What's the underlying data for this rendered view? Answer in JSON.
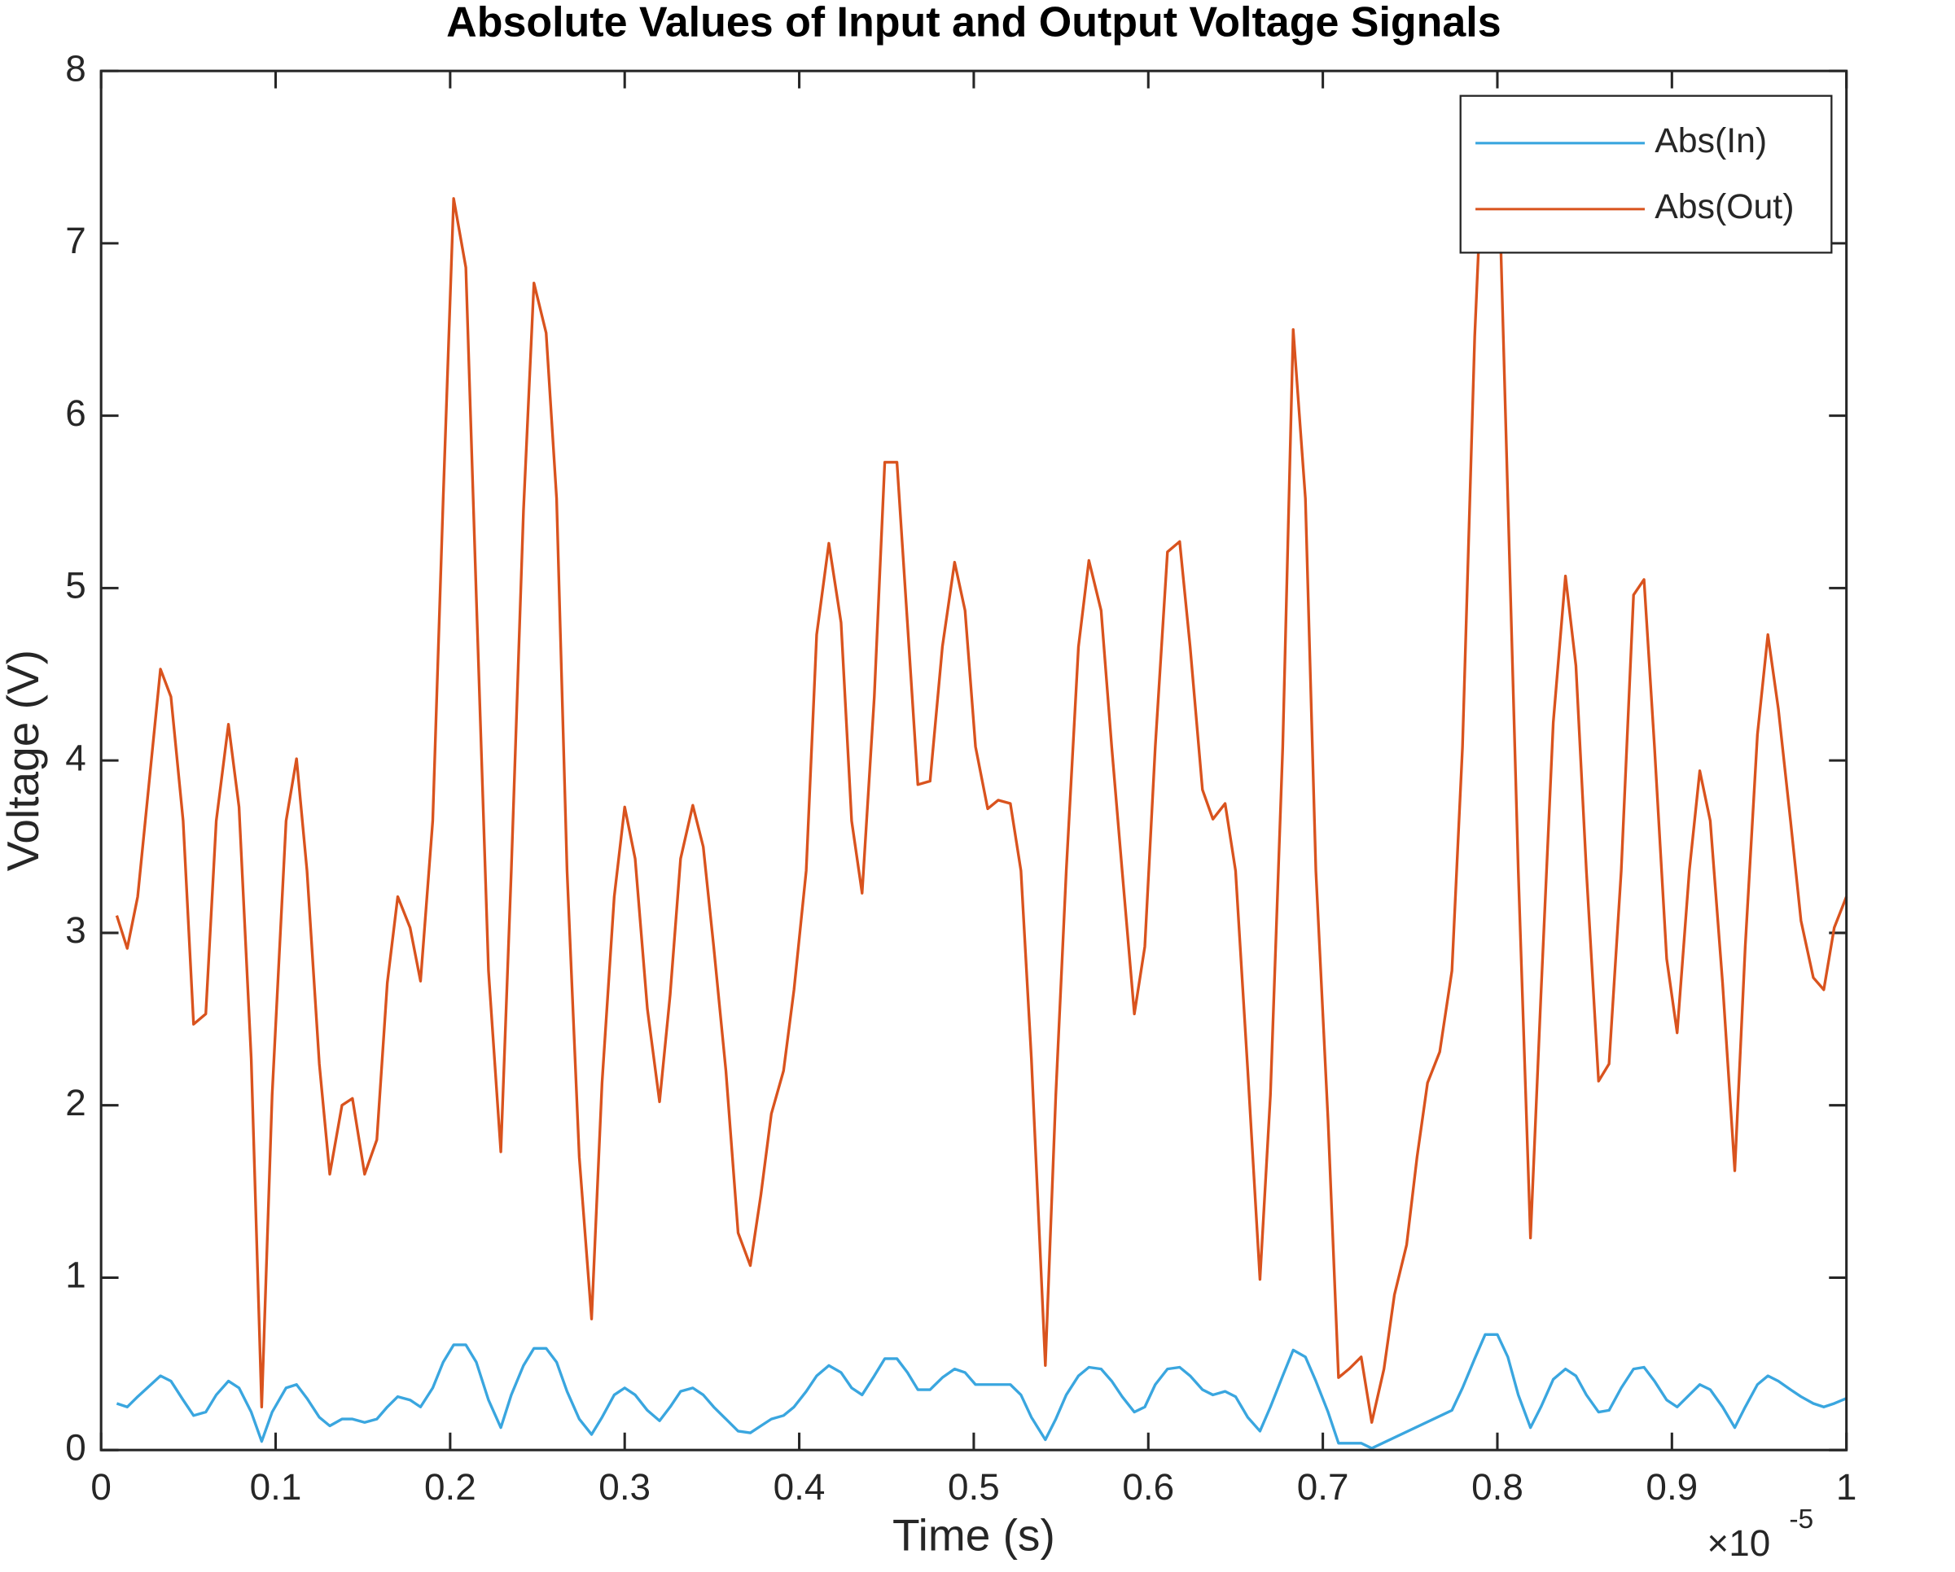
{
  "chart_data": {
    "type": "line",
    "title": "Absolute Values of Input and Output Voltage Signals",
    "x_label": "Time (s)",
    "y_label": "Voltage (V)",
    "x_scale_label": "×10",
    "x_scale_exponent": "-5",
    "xlim": [
      0,
      1
    ],
    "ylim": [
      0,
      8
    ],
    "xticks": [
      0,
      0.1,
      0.2,
      0.3,
      0.4,
      0.5,
      0.6,
      0.7,
      0.8,
      0.9,
      1
    ],
    "yticks": [
      0,
      1,
      2,
      3,
      4,
      5,
      6,
      7,
      8
    ],
    "grid": false,
    "legend": "top-right",
    "series": [
      {
        "name": "Abs(In)",
        "color": "#3aa6df",
        "x": [
          0.009,
          0.015,
          0.021,
          0.034,
          0.04,
          0.047,
          0.053,
          0.06,
          0.066,
          0.073,
          0.079,
          0.086,
          0.092,
          0.098,
          0.106,
          0.112,
          0.118,
          0.125,
          0.131,
          0.138,
          0.144,
          0.151,
          0.158,
          0.164,
          0.17,
          0.177,
          0.183,
          0.19,
          0.196,
          0.202,
          0.209,
          0.215,
          0.222,
          0.229,
          0.235,
          0.242,
          0.248,
          0.255,
          0.261,
          0.267,
          0.274,
          0.281,
          0.287,
          0.294,
          0.3,
          0.306,
          0.313,
          0.32,
          0.326,
          0.332,
          0.339,
          0.345,
          0.351,
          0.358,
          0.365,
          0.372,
          0.378,
          0.384,
          0.391,
          0.397,
          0.404,
          0.41,
          0.417,
          0.424,
          0.43,
          0.436,
          0.443,
          0.449,
          0.456,
          0.462,
          0.468,
          0.475,
          0.482,
          0.489,
          0.495,
          0.501,
          0.508,
          0.514,
          0.521,
          0.527,
          0.533,
          0.541,
          0.547,
          0.553,
          0.56,
          0.566,
          0.573,
          0.579,
          0.585,
          0.592,
          0.598,
          0.604,
          0.611,
          0.618,
          0.624,
          0.631,
          0.637,
          0.644,
          0.65,
          0.657,
          0.664,
          0.67,
          0.677,
          0.683,
          0.69,
          0.696,
          0.703,
          0.709,
          0.715,
          0.722,
          0.728,
          0.774,
          0.78,
          0.787,
          0.793,
          0.8,
          0.806,
          0.812,
          0.819,
          0.825,
          0.832,
          0.839,
          0.845,
          0.851,
          0.858,
          0.864,
          0.871,
          0.878,
          0.884,
          0.89,
          0.897,
          0.903,
          0.91,
          0.916,
          0.922,
          0.929,
          0.936,
          0.942,
          0.949,
          0.955,
          0.961,
          0.968,
          0.974,
          0.981,
          0.987,
          0.993,
          1.0
        ],
        "values": [
          0.27,
          0.25,
          0.31,
          0.43,
          0.4,
          0.29,
          0.2,
          0.22,
          0.32,
          0.4,
          0.36,
          0.22,
          0.05,
          0.22,
          0.36,
          0.38,
          0.3,
          0.19,
          0.14,
          0.18,
          0.18,
          0.16,
          0.18,
          0.25,
          0.31,
          0.29,
          0.25,
          0.36,
          0.51,
          0.61,
          0.61,
          0.51,
          0.29,
          0.13,
          0.32,
          0.49,
          0.59,
          0.59,
          0.51,
          0.34,
          0.18,
          0.09,
          0.19,
          0.32,
          0.36,
          0.32,
          0.23,
          0.17,
          0.25,
          0.34,
          0.36,
          0.32,
          0.25,
          0.18,
          0.11,
          0.1,
          0.14,
          0.18,
          0.2,
          0.25,
          0.34,
          0.43,
          0.49,
          0.45,
          0.36,
          0.32,
          0.43,
          0.53,
          0.53,
          0.45,
          0.35,
          0.35,
          0.42,
          0.47,
          0.45,
          0.38,
          0.38,
          0.38,
          0.38,
          0.32,
          0.19,
          0.06,
          0.18,
          0.32,
          0.43,
          0.48,
          0.47,
          0.4,
          0.31,
          0.22,
          0.25,
          0.38,
          0.47,
          0.48,
          0.43,
          0.35,
          0.32,
          0.34,
          0.31,
          0.19,
          0.11,
          0.25,
          0.43,
          0.58,
          0.54,
          0.4,
          0.22,
          0.04,
          0.04,
          0.04,
          0.01,
          0.23,
          0.36,
          0.53,
          0.67,
          0.67,
          0.54,
          0.32,
          0.13,
          0.25,
          0.41,
          0.47,
          0.43,
          0.32,
          0.22,
          0.23,
          0.36,
          0.47,
          0.48,
          0.4,
          0.29,
          0.25,
          0.32,
          0.38,
          0.35,
          0.25,
          0.13,
          0.25,
          0.38,
          0.43,
          0.4,
          0.35,
          0.31,
          0.27,
          0.25,
          0.27,
          0.3
        ]
      },
      {
        "name": "Abs(Out)",
        "color": "#d9531e",
        "x": [
          0.009,
          0.015,
          0.021,
          0.034,
          0.04,
          0.047,
          0.053,
          0.06,
          0.066,
          0.073,
          0.079,
          0.086,
          0.092,
          0.098,
          0.106,
          0.112,
          0.118,
          0.125,
          0.131,
          0.138,
          0.144,
          0.151,
          0.158,
          0.164,
          0.17,
          0.177,
          0.183,
          0.19,
          0.196,
          0.202,
          0.209,
          0.215,
          0.222,
          0.229,
          0.235,
          0.242,
          0.248,
          0.255,
          0.261,
          0.267,
          0.274,
          0.281,
          0.287,
          0.294,
          0.3,
          0.306,
          0.313,
          0.32,
          0.326,
          0.332,
          0.339,
          0.345,
          0.351,
          0.358,
          0.365,
          0.372,
          0.378,
          0.384,
          0.391,
          0.397,
          0.404,
          0.41,
          0.417,
          0.424,
          0.43,
          0.436,
          0.443,
          0.449,
          0.456,
          0.462,
          0.468,
          0.475,
          0.482,
          0.489,
          0.495,
          0.501,
          0.508,
          0.514,
          0.521,
          0.527,
          0.533,
          0.541,
          0.547,
          0.553,
          0.56,
          0.566,
          0.573,
          0.579,
          0.585,
          0.592,
          0.598,
          0.604,
          0.611,
          0.618,
          0.624,
          0.631,
          0.637,
          0.644,
          0.65,
          0.657,
          0.664,
          0.67,
          0.677,
          0.683,
          0.69,
          0.696,
          0.703,
          0.709,
          0.715,
          0.722,
          0.728,
          0.735,
          0.741,
          0.748,
          0.754,
          0.76,
          0.767,
          0.774,
          0.78,
          0.787,
          0.793,
          0.8,
          0.806,
          0.812,
          0.819,
          0.825,
          0.832,
          0.839,
          0.845,
          0.851,
          0.858,
          0.864,
          0.871,
          0.878,
          0.884,
          0.89,
          0.897,
          0.903,
          0.91,
          0.916,
          0.922,
          0.929,
          0.936,
          0.942,
          0.949,
          0.955,
          0.961,
          0.968,
          0.974,
          0.981,
          0.987,
          0.993,
          1.0
        ],
        "values": [
          3.1,
          2.91,
          3.21,
          4.53,
          4.37,
          3.65,
          2.47,
          2.53,
          3.65,
          4.21,
          3.73,
          2.27,
          0.25,
          2.06,
          3.65,
          4.01,
          3.36,
          2.24,
          1.6,
          2.0,
          2.04,
          1.6,
          1.8,
          2.71,
          3.21,
          3.03,
          2.72,
          3.65,
          5.52,
          7.26,
          6.86,
          4.95,
          2.78,
          1.73,
          3.36,
          5.45,
          6.77,
          6.48,
          5.52,
          3.36,
          1.7,
          0.76,
          2.13,
          3.21,
          3.73,
          3.43,
          2.56,
          2.02,
          2.64,
          3.43,
          3.74,
          3.5,
          2.92,
          2.2,
          1.26,
          1.07,
          1.48,
          1.95,
          2.2,
          2.67,
          3.36,
          4.73,
          5.26,
          4.8,
          3.65,
          3.23,
          4.37,
          5.73,
          5.73,
          4.8,
          3.86,
          3.88,
          4.66,
          5.15,
          4.87,
          4.08,
          3.72,
          3.77,
          3.75,
          3.36,
          2.27,
          0.49,
          2.06,
          3.36,
          4.66,
          5.16,
          4.87,
          4.08,
          3.36,
          2.53,
          2.92,
          4.08,
          5.21,
          5.27,
          4.66,
          3.83,
          3.66,
          3.75,
          3.36,
          2.2,
          0.99,
          2.06,
          4.08,
          6.5,
          5.52,
          3.36,
          1.91,
          0.42,
          0.47,
          0.54,
          0.16,
          0.47,
          0.9,
          1.19,
          1.7,
          2.13,
          2.31,
          2.78,
          4.08,
          6.46,
          7.85,
          7.7,
          5.52,
          3.36,
          1.23,
          2.64,
          4.22,
          5.07,
          4.55,
          3.36,
          2.14,
          2.24,
          3.36,
          4.96,
          5.05,
          4.08,
          2.85,
          2.42,
          3.36,
          3.94,
          3.65,
          2.71,
          1.62,
          2.92,
          4.15,
          4.73,
          4.3,
          3.65,
          3.07,
          2.74,
          2.67,
          3.03,
          3.21
        ]
      }
    ]
  }
}
